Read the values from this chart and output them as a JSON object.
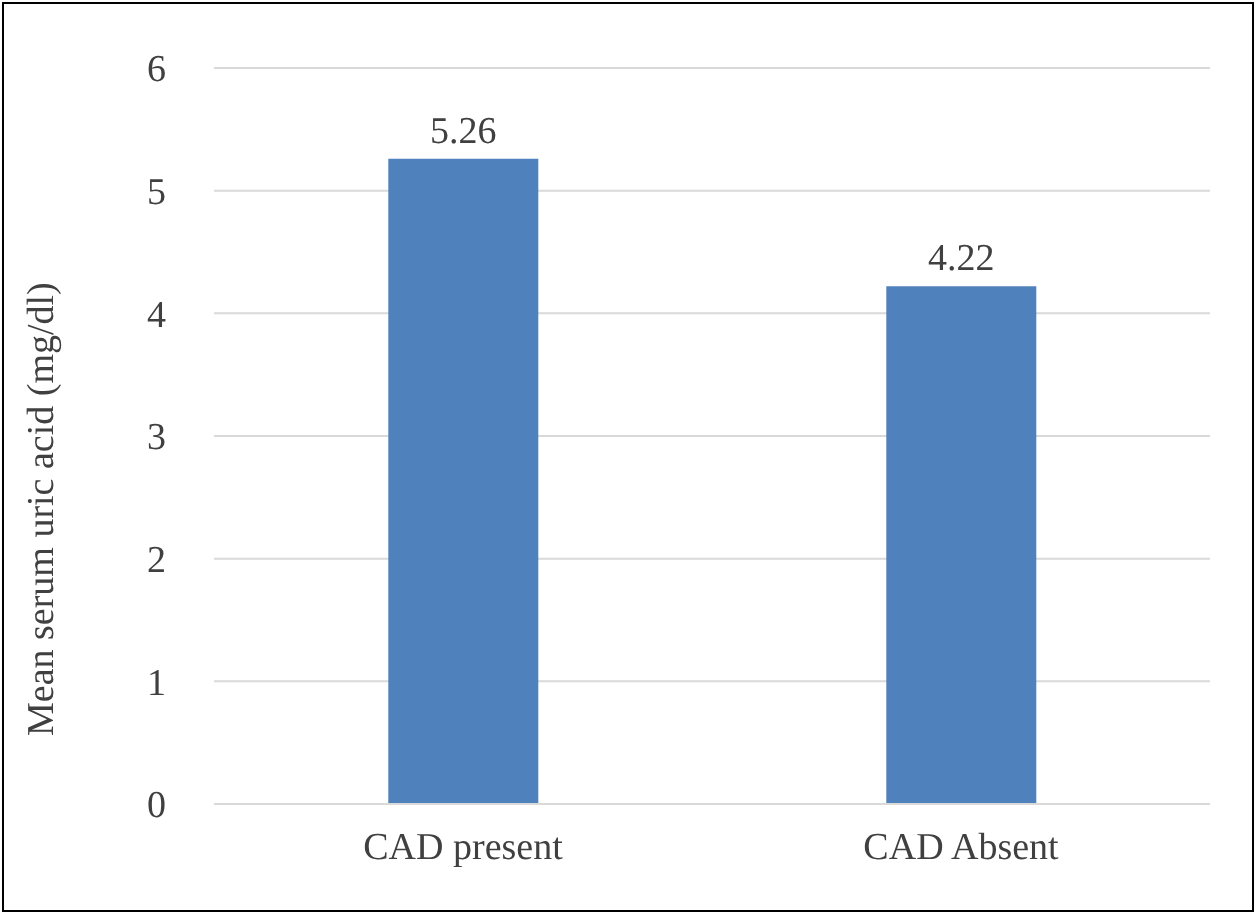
{
  "chart_data": {
    "type": "bar",
    "ylabel": "Mean serum uric acid (mg/dl)",
    "categories": [
      "CAD present",
      "CAD Absent"
    ],
    "values": [
      5.26,
      4.22
    ],
    "color": "#4f81bd",
    "ylim": [
      0,
      6
    ],
    "yticks": [
      0,
      1,
      2,
      3,
      4,
      5,
      6
    ],
    "grid": "y",
    "data_labels": true
  }
}
